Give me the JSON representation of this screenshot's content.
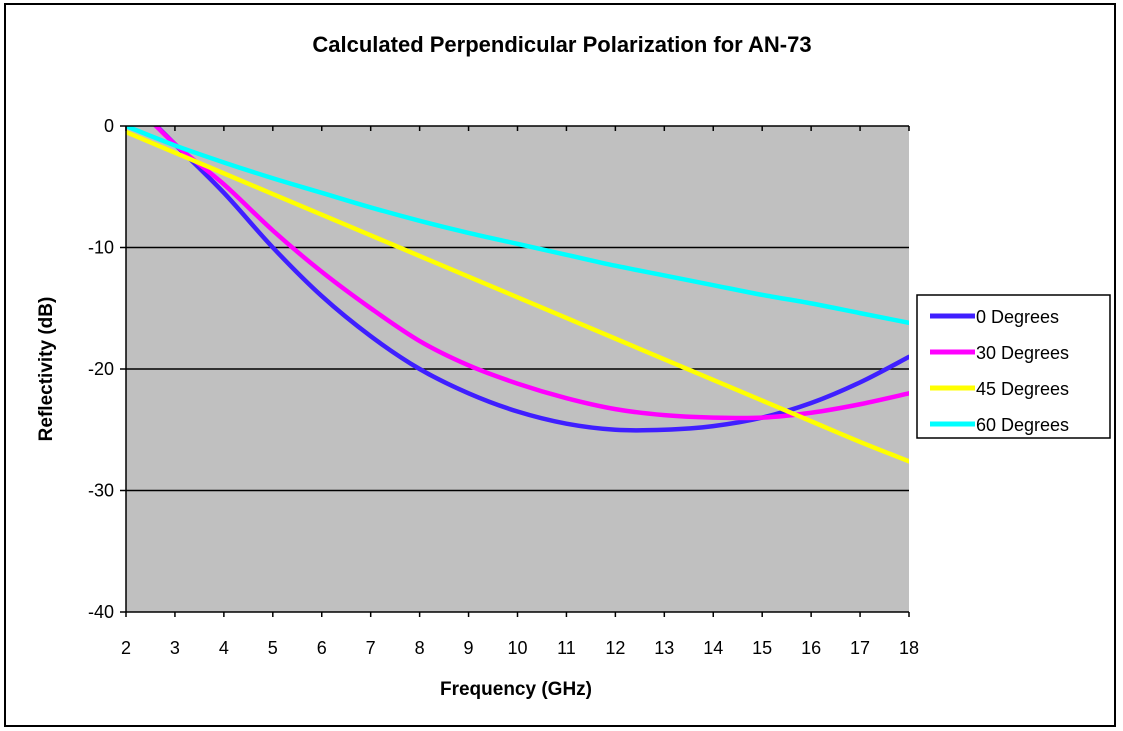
{
  "colors": {
    "plot_background": "#c0c0c0",
    "gridline": "#000000",
    "axis": "#000000"
  },
  "chart_data": {
    "type": "line",
    "title": "Calculated Perpendicular Polarization for AN-73",
    "xlabel": "Frequency (GHz)",
    "ylabel": "Reflectivity (dB)",
    "xlim": [
      2,
      18
    ],
    "ylim": [
      -40,
      0
    ],
    "x_ticks": [
      "2",
      "3",
      "4",
      "5",
      "6",
      "7",
      "8",
      "9",
      "10",
      "11",
      "12",
      "13",
      "14",
      "15",
      "16",
      "17",
      "18"
    ],
    "y_ticks": [
      "0",
      "-10",
      "-20",
      "-30",
      "-40"
    ],
    "grid": "horizontal",
    "legend_position": "right",
    "x": [
      2,
      3,
      4,
      5,
      6,
      7,
      8,
      9,
      10,
      11,
      12,
      13,
      14,
      15,
      16,
      17,
      18
    ],
    "series": [
      {
        "name": "0 Degrees",
        "color": "#3f1fff",
        "values": [
          2.5,
          -1.5,
          -5.5,
          -10.0,
          -14.0,
          -17.3,
          -20.0,
          -22.0,
          -23.5,
          -24.5,
          -25.0,
          -25.0,
          -24.7,
          -24.0,
          -22.8,
          -21.1,
          -19.0
        ]
      },
      {
        "name": "30 Degrees",
        "color": "#ff00ff",
        "values": [
          2.5,
          -1.5,
          -4.8,
          -8.6,
          -12.0,
          -15.0,
          -17.7,
          -19.7,
          -21.2,
          -22.4,
          -23.3,
          -23.8,
          -24.0,
          -24.0,
          -23.6,
          -22.9,
          -22.0
        ]
      },
      {
        "name": "45 Degrees",
        "color": "#ffff00",
        "values": [
          -0.5,
          -2.2,
          -3.9,
          -5.6,
          -7.3,
          -9.0,
          -10.7,
          -12.4,
          -14.1,
          -15.8,
          -17.5,
          -19.2,
          -20.9,
          -22.6,
          -24.3,
          -26.0,
          -27.6
        ]
      },
      {
        "name": "60 Degrees",
        "color": "#00ffff",
        "values": [
          0.0,
          -1.6,
          -3.0,
          -4.3,
          -5.5,
          -6.7,
          -7.8,
          -8.8,
          -9.7,
          -10.6,
          -11.5,
          -12.3,
          -13.1,
          -13.9,
          -14.6,
          -15.4,
          -16.2
        ]
      }
    ]
  }
}
